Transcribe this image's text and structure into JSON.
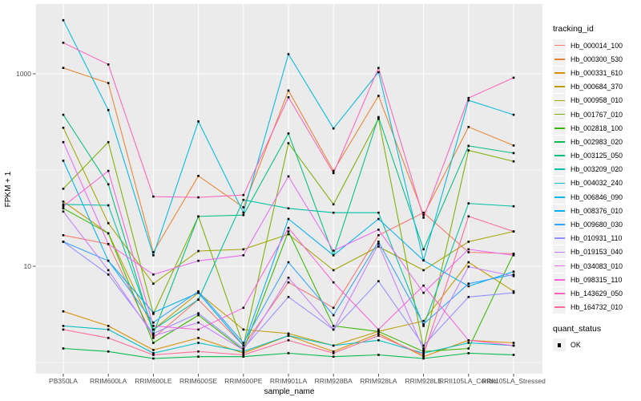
{
  "figure": {
    "y_axis_label": "FPKM + 1",
    "x_axis_label": "sample_name",
    "y_ticks": [
      {
        "label": "1000",
        "value": 1000
      },
      {
        "label": "10",
        "value": 10
      }
    ],
    "y_minor_values": [
      100,
      1
    ],
    "legend_title": "tracking_id",
    "quant_title": "quant_status",
    "quant_ok_label": "OK",
    "panel_bg": "#EBEBEB",
    "grid_color": "#FFFFFF",
    "marker_color": "#000000",
    "tick_text_color": "#4D4D4D"
  },
  "chart_data": {
    "type": "line",
    "y_scale": "log10",
    "ylabel": "FPKM + 1",
    "xlabel": "sample_name",
    "y_tick_values": [
      10,
      1000
    ],
    "ylim_approx": [
      1,
      4500
    ],
    "grid": true,
    "legend_position": "right",
    "point_marker": {
      "shape": "square",
      "color": "#000000",
      "legend_label": "OK"
    },
    "x_categories": [
      "PB350LA",
      "RRIM600LA",
      "RRIM600LE",
      "RRIM600SE",
      "RRIM600PE",
      "RRIM901LA",
      "RRIM928BA",
      "RRIM928LA",
      "RRIM928LE",
      "RRII105LA_Control",
      "RRII105LA_Stressed"
    ],
    "series": [
      {
        "name": "Hb_000014_100",
        "color": "#F8766D",
        "values": [
          21,
          17,
          1.8,
          4.5,
          1.5,
          6.8,
          3.7,
          21,
          36,
          14,
          13.5
        ]
      },
      {
        "name": "Hb_000300_530",
        "color": "#EA8331",
        "values": [
          1150,
          800,
          14,
          87,
          41,
          670,
          98,
          590,
          34,
          280,
          180
        ]
      },
      {
        "name": "Hb_000331_610",
        "color": "#D89000",
        "values": [
          3.4,
          2.4,
          1.35,
          1.8,
          1.25,
          1.9,
          1.3,
          2.0,
          1.15,
          1.7,
          1.6
        ]
      },
      {
        "name": "Hb_000684_370",
        "color": "#C09B00",
        "values": [
          47,
          22,
          2.2,
          5.3,
          2.2,
          2.0,
          1.5,
          2.1,
          2.7,
          11,
          5.5
        ]
      },
      {
        "name": "Hb_000958_010",
        "color": "#A3A500",
        "values": [
          275,
          28,
          6.6,
          14.4,
          15,
          21.5,
          9.1,
          16,
          9.1,
          18,
          23
        ]
      },
      {
        "name": "Hb_001767_010",
        "color": "#7CAE00",
        "values": [
          64,
          195,
          3.2,
          33,
          1.5,
          190,
          44,
          340,
          1.4,
          160,
          123
        ]
      },
      {
        "name": "Hb_002818_100",
        "color": "#39B600",
        "values": [
          40,
          22,
          1.6,
          3.1,
          1.35,
          23,
          2.4,
          2.1,
          1.3,
          1.4,
          13.5
        ]
      },
      {
        "name": "Hb_002983_020",
        "color": "#00BB4E",
        "values": [
          1.4,
          1.3,
          1.1,
          1.15,
          1.15,
          1.25,
          1.15,
          1.2,
          1.1,
          1.25,
          1.2
        ]
      },
      {
        "name": "Hb_003125_050",
        "color": "#00BF7D",
        "values": [
          375,
          71,
          2.0,
          33,
          34,
          240,
          13,
          355,
          15,
          178,
          150
        ]
      },
      {
        "name": "Hb_003209_020",
        "color": "#00C1A3",
        "values": [
          44,
          43,
          2.2,
          4.5,
          49,
          40,
          36,
          36,
          2.4,
          45,
          42
        ]
      },
      {
        "name": "Hb_004032_240",
        "color": "#00BFC4",
        "values": [
          2.4,
          2.2,
          1.25,
          1.6,
          1.3,
          1.9,
          1.5,
          1.7,
          1.25,
          1.6,
          1.5
        ]
      },
      {
        "name": "Hb_006846_090",
        "color": "#00BAE0",
        "values": [
          3600,
          420,
          13,
          320,
          36,
          1600,
          270,
          1040,
          11.5,
          530,
          375
        ]
      },
      {
        "name": "Hb_008376_010",
        "color": "#00B0F6",
        "values": [
          125,
          11.4,
          3.3,
          5.3,
          1.5,
          31,
          13,
          31,
          11.5,
          6.2,
          8.8
        ]
      },
      {
        "name": "Hb_009680_030",
        "color": "#35A2FF",
        "values": [
          18,
          11.4,
          2.6,
          5.5,
          1.6,
          11,
          3.1,
          18,
          2.5,
          6.6,
          8.2
        ]
      },
      {
        "name": "Hb_010931_110",
        "color": "#9590FF",
        "values": [
          18,
          8.2,
          2.0,
          3.25,
          1.4,
          4.8,
          2.2,
          7.0,
          1.5,
          4.8,
          5.3
        ]
      },
      {
        "name": "Hb_019153_040",
        "color": "#C77CFF",
        "values": [
          37,
          9.1,
          1.9,
          2.6,
          1.35,
          7.6,
          2.2,
          17,
          1.35,
          9.9,
          7.9
        ]
      },
      {
        "name": "Hb_034083_010",
        "color": "#E76BF3",
        "values": [
          195,
          17,
          8.2,
          11.4,
          13,
          86,
          14.5,
          24,
          5.3,
          15,
          13
        ]
      },
      {
        "name": "Hb_098315_110",
        "color": "#FA62DB",
        "values": [
          42,
          98,
          2.4,
          2.2,
          3.7,
          25,
          6.8,
          2.2,
          6.3,
          1.7,
          1.5
        ]
      },
      {
        "name": "Hb_143629_050",
        "color": "#FF62BC",
        "values": [
          2100,
          1250,
          53,
          52,
          55,
          570,
          93,
          1150,
          32,
          560,
          910
        ]
      },
      {
        "name": "Hb_164732_010",
        "color": "#FF6A98",
        "values": [
          2.2,
          1.8,
          1.2,
          1.3,
          1.2,
          1.7,
          1.25,
          1.9,
          1.2,
          33,
          23
        ]
      }
    ]
  }
}
